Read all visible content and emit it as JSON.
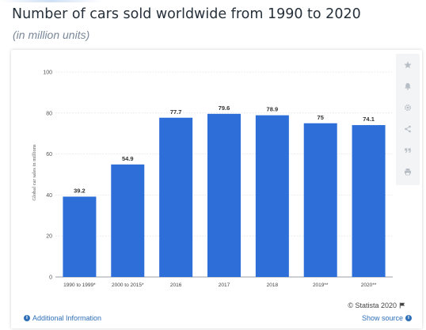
{
  "page": {
    "title": "Number of cars sold worldwide from 1990 to 2020",
    "subtitle": "(in million units)"
  },
  "chart_data": {
    "type": "bar",
    "title": "Number of cars sold worldwide from 1990 to 2020",
    "subtitle": "(in million units)",
    "ylabel": "Global car sales in millions",
    "xlabel": "",
    "categories": [
      "1990 to 1999*",
      "2000 to 2015*",
      "2016",
      "2017",
      "2018",
      "2019**",
      "2020**"
    ],
    "values": [
      39.2,
      54.9,
      77.7,
      79.6,
      78.9,
      75,
      74.1
    ],
    "value_labels": [
      "39.2",
      "54.9",
      "77.7",
      "79.6",
      "78.9",
      "75",
      "74.1"
    ],
    "ylim": [
      0,
      100
    ],
    "yticks": [
      0,
      20,
      40,
      60,
      80,
      100
    ],
    "grid": true,
    "bar_color": "#2e6ed9",
    "legend": "none"
  },
  "footer": {
    "credit": "© Statista 2020",
    "additional_info": "Additional Information",
    "show_source": "Show source"
  },
  "toolbar": {
    "icons": [
      "star-icon",
      "bell-icon",
      "gear-icon",
      "share-icon",
      "quote-icon",
      "print-icon"
    ]
  },
  "colors": {
    "accent": "#2e6ed9",
    "link": "#2f6fb7",
    "title": "#26303a"
  }
}
